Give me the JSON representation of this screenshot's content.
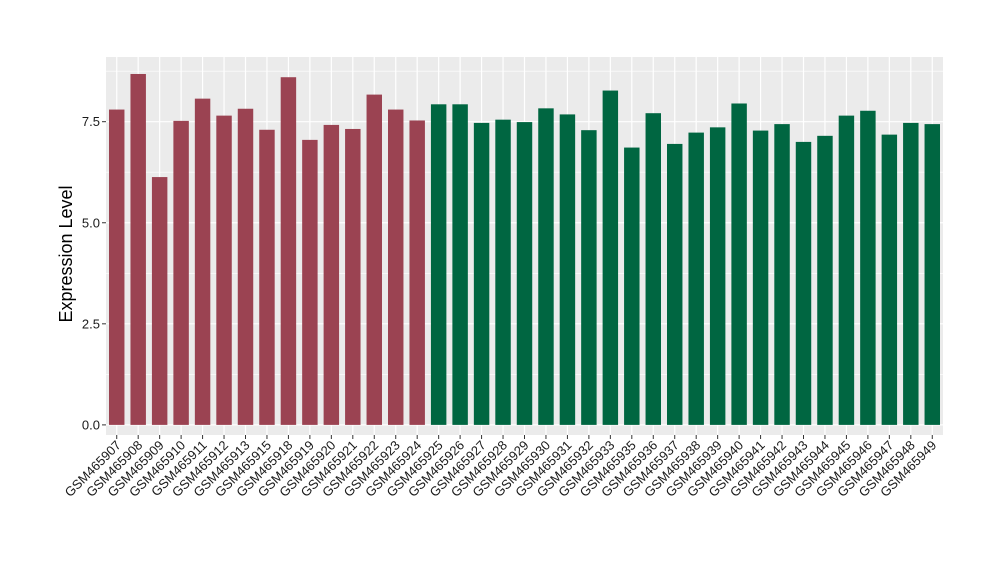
{
  "chart_data": {
    "type": "bar",
    "ylabel": "Expression Level",
    "xlabel": "",
    "ylim": [
      -0.25,
      9.1
    ],
    "yticks": [
      0.0,
      2.5,
      5.0,
      7.5
    ],
    "ytick_labels": [
      "0.0",
      "2.5",
      "5.0",
      "7.5"
    ],
    "grid": true,
    "colors": {
      "group_a": "#9b4352",
      "group_b": "#006641",
      "panel": "#ebebeb",
      "grid": "#ffffff"
    },
    "categories": [
      "GSM465907",
      "GSM465908",
      "GSM465909",
      "GSM465910",
      "GSM465911",
      "GSM465912",
      "GSM465913",
      "GSM465915",
      "GSM465918",
      "GSM465919",
      "GSM465920",
      "GSM465921",
      "GSM465922",
      "GSM465923",
      "GSM465924",
      "GSM465925",
      "GSM465926",
      "GSM465927",
      "GSM465928",
      "GSM465929",
      "GSM465930",
      "GSM465931",
      "GSM465932",
      "GSM465933",
      "GSM465935",
      "GSM465936",
      "GSM465937",
      "GSM465938",
      "GSM465939",
      "GSM465940",
      "GSM465941",
      "GSM465942",
      "GSM465943",
      "GSM465944",
      "GSM465945",
      "GSM465946",
      "GSM465947",
      "GSM465948",
      "GSM465949"
    ],
    "values": [
      7.8,
      8.68,
      6.13,
      7.52,
      8.07,
      7.65,
      7.82,
      7.3,
      8.6,
      7.05,
      7.42,
      7.32,
      8.17,
      7.8,
      7.53,
      7.93,
      7.93,
      7.47,
      7.55,
      7.49,
      7.83,
      7.68,
      7.29,
      8.27,
      6.86,
      7.71,
      6.95,
      7.23,
      7.36,
      7.95,
      7.28,
      7.44,
      7.0,
      7.15,
      7.65,
      7.77,
      7.18,
      7.47,
      7.44
    ],
    "groups": [
      "a",
      "a",
      "a",
      "a",
      "a",
      "a",
      "a",
      "a",
      "a",
      "a",
      "a",
      "a",
      "a",
      "a",
      "a",
      "b",
      "b",
      "b",
      "b",
      "b",
      "b",
      "b",
      "b",
      "b",
      "b",
      "b",
      "b",
      "b",
      "b",
      "b",
      "b",
      "b",
      "b",
      "b",
      "b",
      "b",
      "b",
      "b",
      "b"
    ]
  }
}
